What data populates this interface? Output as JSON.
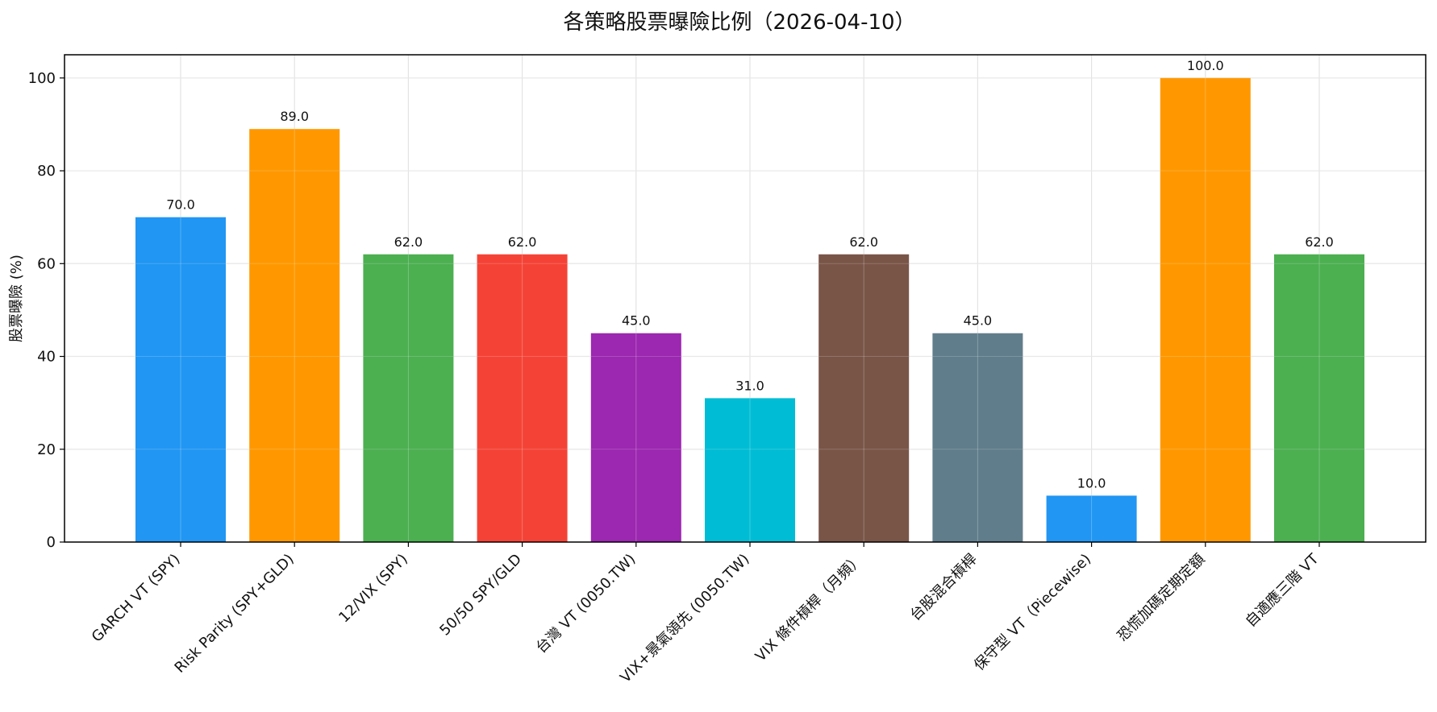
{
  "chart_data": {
    "type": "bar",
    "title": "各策略股票曝險比例（2026-04-10）",
    "xlabel": "",
    "ylabel": "股票曝險 (%)",
    "ylim": [
      0,
      105
    ],
    "yticks": [
      0,
      20,
      40,
      60,
      80,
      100
    ],
    "grid": true,
    "categories": [
      "GARCH VT (SPY)",
      "Risk Parity (SPY+GLD)",
      "12/VIX (SPY)",
      "50/50 SPY/GLD",
      "台灣 VT (0050.TW)",
      "VIX+景氣領先 (0050.TW)",
      "VIX 條件槓桿（月頻）",
      "台股混合槓桿",
      "保守型 VT（Piecewise)",
      "恐慌加碼定期定額",
      "自適應三階 VT"
    ],
    "values": [
      70.0,
      89.0,
      62.0,
      62.0,
      45.0,
      31.0,
      62.0,
      45.0,
      10.0,
      100.0,
      62.0
    ],
    "value_labels": [
      "70.0",
      "89.0",
      "62.0",
      "62.0",
      "45.0",
      "31.0",
      "62.0",
      "45.0",
      "10.0",
      "100.0",
      "62.0"
    ],
    "colors": [
      "#2196F3",
      "#FF9800",
      "#4CAF50",
      "#F44336",
      "#9C27B0",
      "#00BCD4",
      "#795548",
      "#607D8B",
      "#2196F3",
      "#FF9800",
      "#4CAF50"
    ]
  }
}
